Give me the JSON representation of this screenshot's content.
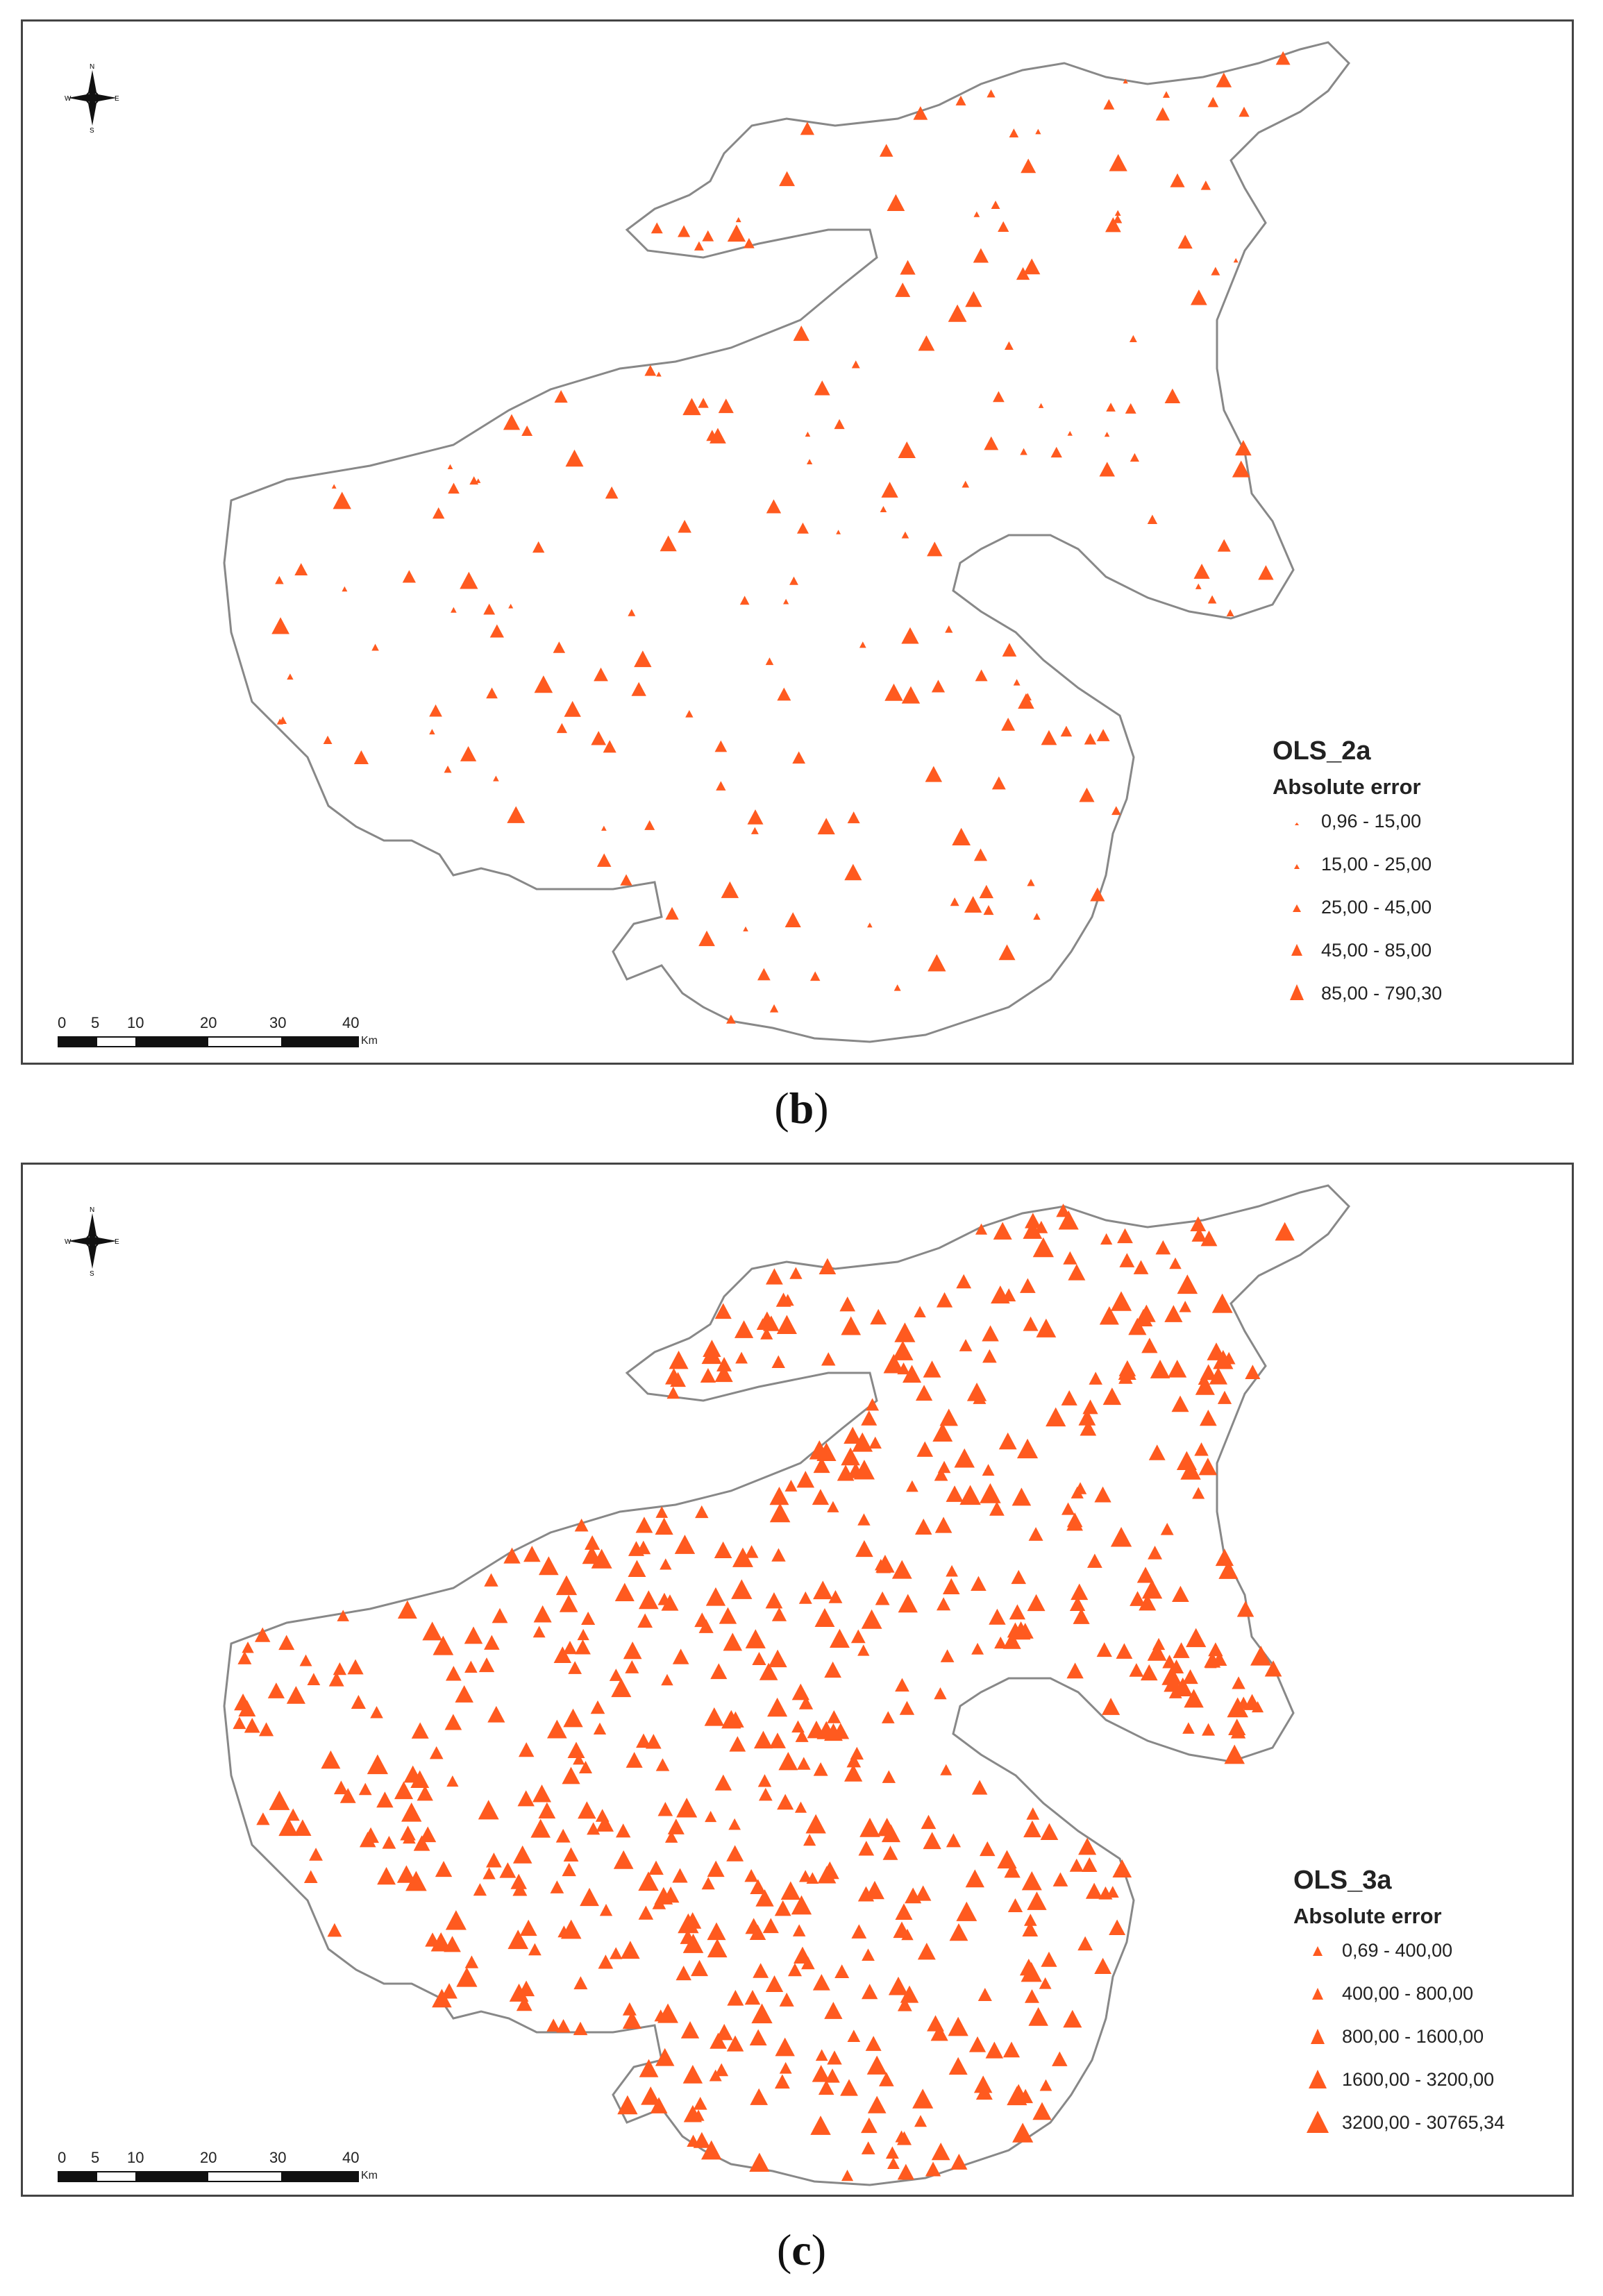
{
  "panels": [
    {
      "id": "b",
      "caption": "b",
      "legend": {
        "title": "OLS_2a",
        "subtitle": "Absolute error",
        "classes": [
          "0,96 - 15,00",
          "15,00 - 25,00",
          "25,00 - 45,00",
          "45,00 - 85,00",
          "85,00 - 790,30"
        ]
      },
      "scale": {
        "ticks": [
          "0",
          "5",
          "10",
          "20",
          "30",
          "40"
        ],
        "unit": "Km"
      },
      "compass": {
        "n": "N",
        "s": "S",
        "e": "E",
        "w": "W"
      }
    },
    {
      "id": "c",
      "caption": "c",
      "legend": {
        "title": "OLS_3a",
        "subtitle": "Absolute error",
        "classes": [
          "0,69 - 400,00",
          "400,00 - 800,00",
          "800,00 - 1600,00",
          "1600,00 - 3200,00",
          "3200,00 - 30765,34"
        ]
      },
      "scale": {
        "ticks": [
          "0",
          "5",
          "10",
          "20",
          "30",
          "40"
        ],
        "unit": "Km"
      },
      "compass": {
        "n": "N",
        "s": "S",
        "e": "E",
        "w": "W"
      }
    }
  ],
  "colors": {
    "marker": "#ff5a1f",
    "outline": "#888888",
    "frame": "#444444"
  },
  "icons": {
    "compass": "compass-rose-icon",
    "marker": "triangle-marker-icon"
  }
}
